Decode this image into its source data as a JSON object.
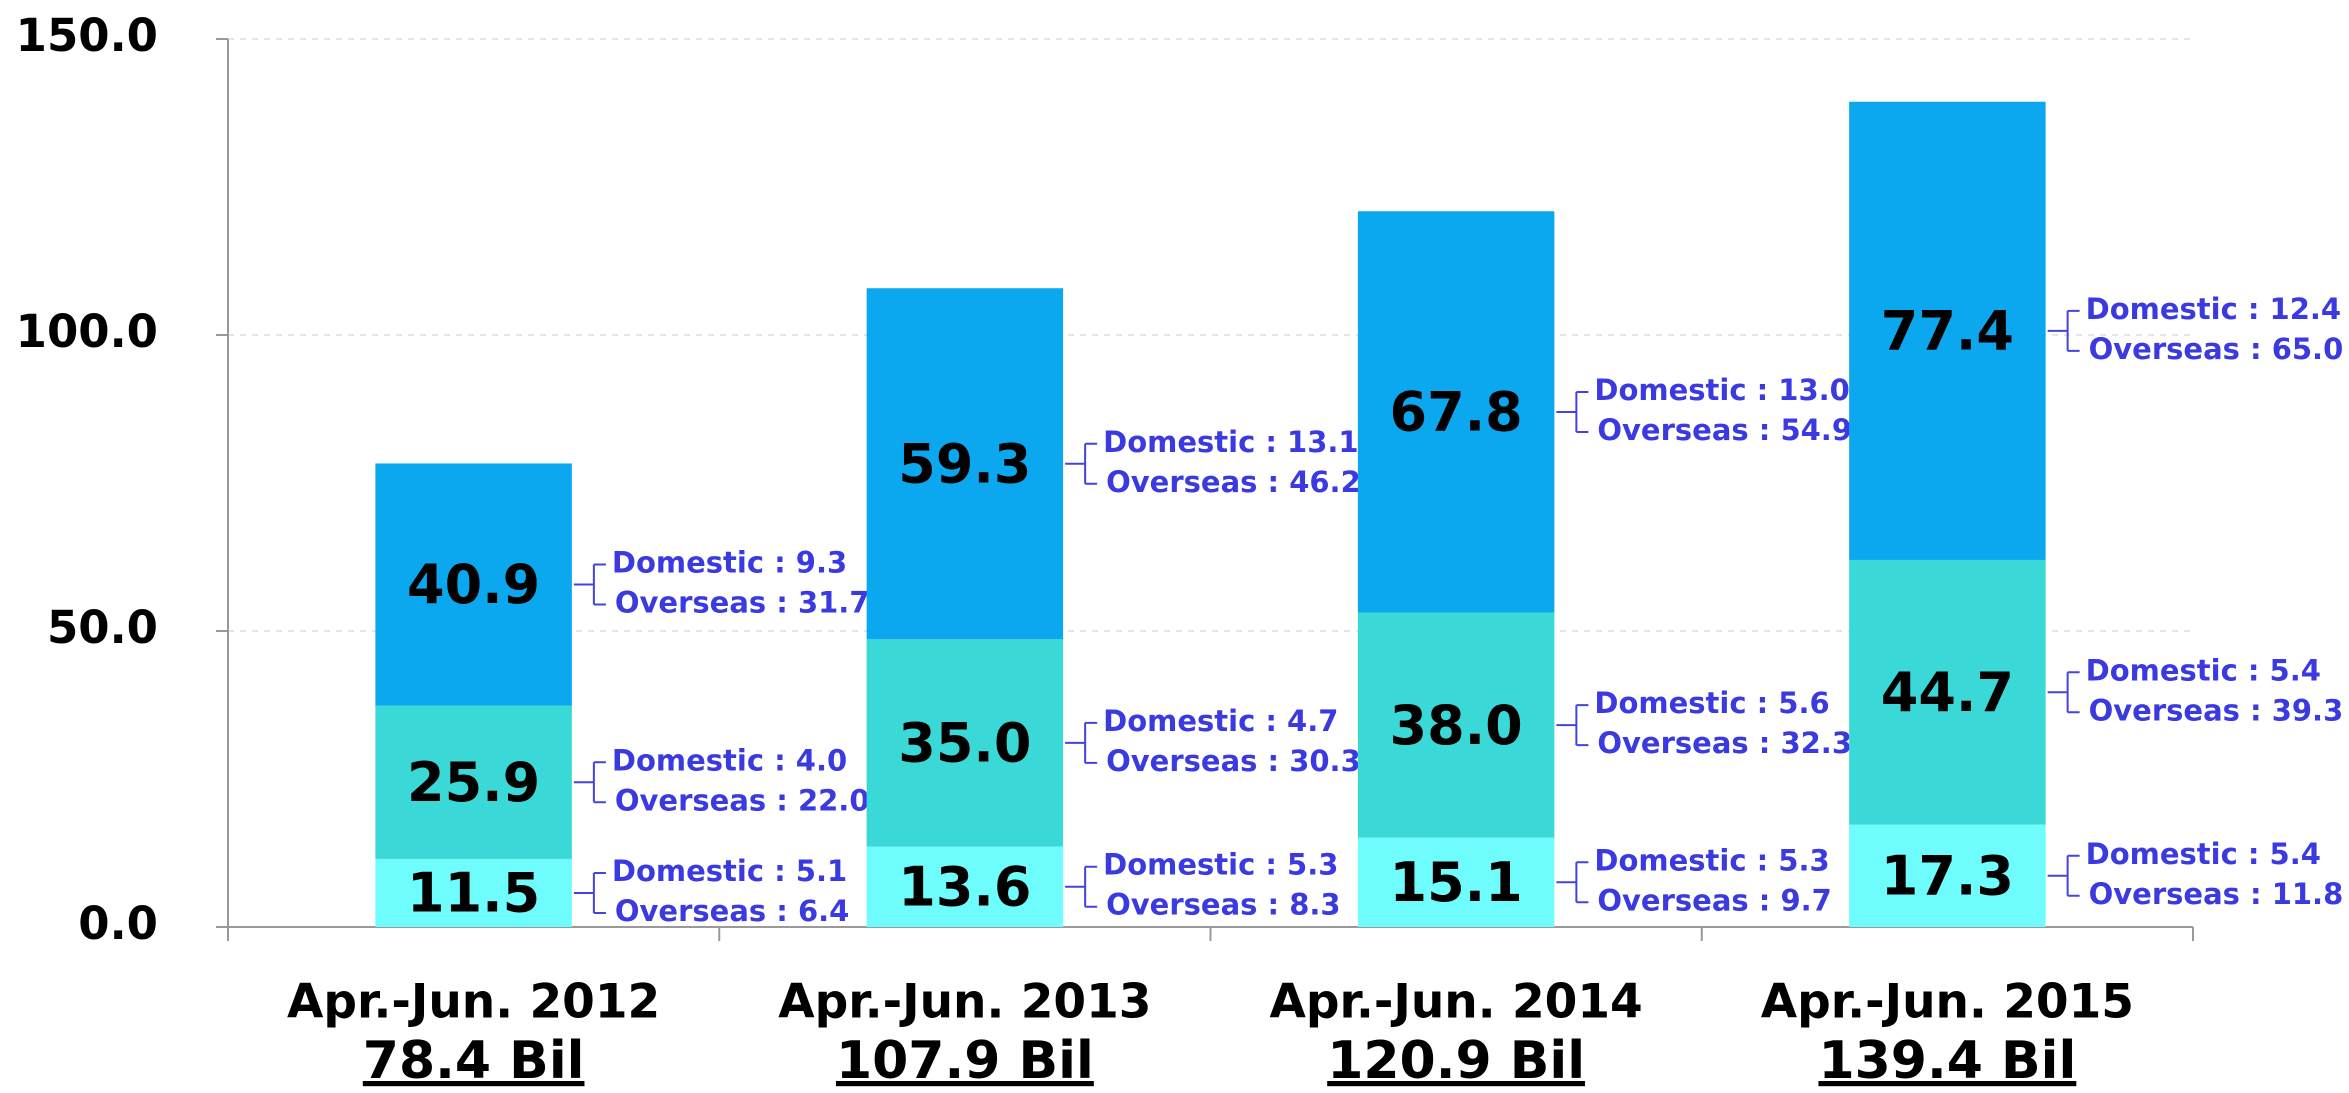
{
  "chart_data": {
    "type": "stacked_bar",
    "categories": [
      "Apr.-Jun. 2012",
      "Apr.-Jun. 2013",
      "Apr.-Jun. 2014",
      "Apr.-Jun. 2015"
    ],
    "totals": [
      "78.4 Bil",
      "107.9 Bil",
      "120.9 Bil",
      "139.4 Bil"
    ],
    "series": [
      {
        "color": "#6ffcfc",
        "values": [
          11.5,
          13.6,
          15.1,
          17.3
        ],
        "value_labels": [
          "11.5",
          "13.6",
          "15.1",
          "17.3"
        ],
        "notes": [
          [
            "Domestic : 5.1",
            "Overseas : 6.4"
          ],
          [
            "Domestic : 5.3",
            "Overseas : 8.3"
          ],
          [
            "Domestic : 5.3",
            "Overseas : 9.7"
          ],
          [
            "Domestic : 5.4",
            "Overseas : 11.8"
          ]
        ]
      },
      {
        "color": "#3bd8d8",
        "values": [
          25.9,
          35.0,
          38.0,
          44.7
        ],
        "value_labels": [
          "25.9",
          "35.0",
          "38.0",
          "44.7"
        ],
        "notes": [
          [
            "Domestic : 4.0",
            "Overseas : 22.0"
          ],
          [
            "Domestic : 4.7",
            "Overseas : 30.3"
          ],
          [
            "Domestic : 5.6",
            "Overseas : 32.3"
          ],
          [
            "Domestic : 5.4",
            "Overseas : 39.3"
          ]
        ]
      },
      {
        "color": "#0ba7ef",
        "values": [
          40.9,
          59.3,
          67.8,
          77.4
        ],
        "value_labels": [
          "40.9",
          "59.3",
          "67.8",
          "77.4"
        ],
        "notes": [
          [
            "Domestic : 9.3",
            "Overseas : 31.7"
          ],
          [
            "Domestic : 13.1",
            "Overseas : 46.2"
          ],
          [
            "Domestic : 13.0",
            "Overseas : 54.9"
          ],
          [
            "Domestic : 12.4",
            "Overseas : 65.0"
          ]
        ]
      }
    ],
    "ylim": [
      0,
      150
    ],
    "yticks": [
      {
        "value": 0,
        "label": "0.0"
      },
      {
        "value": 50,
        "label": "50.0"
      },
      {
        "value": 100,
        "label": "100.0"
      },
      {
        "value": 150,
        "label": "150.0"
      }
    ],
    "grid": true
  }
}
